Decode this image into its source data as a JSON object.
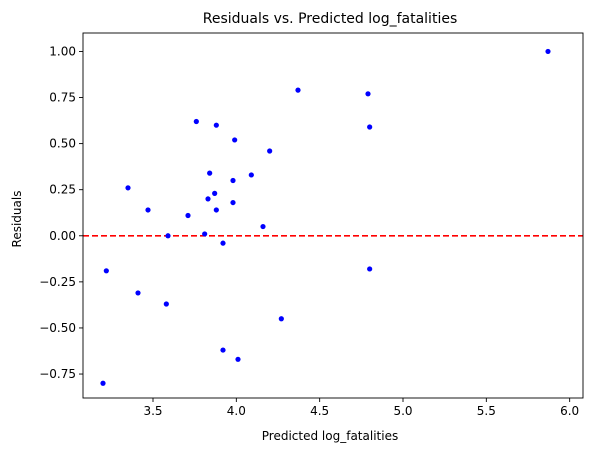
{
  "chart_data": {
    "type": "scatter",
    "title": "Residuals vs. Predicted log_fatalities",
    "xlabel": "Predicted log_fatalities",
    "ylabel": "Residuals",
    "xlim": [
      3.08,
      6.08
    ],
    "ylim": [
      -0.88,
      1.1
    ],
    "xticks": [
      3.5,
      4.0,
      4.5,
      5.0,
      5.5,
      6.0
    ],
    "xtick_labels": [
      "3.5",
      "4.0",
      "4.5",
      "5.0",
      "5.5",
      "6.0"
    ],
    "yticks": [
      -0.75,
      -0.5,
      -0.25,
      0.0,
      0.25,
      0.5,
      0.75,
      1.0
    ],
    "ytick_labels": [
      "−0.75",
      "−0.50",
      "−0.25",
      "0.00",
      "0.25",
      "0.50",
      "0.75",
      "1.00"
    ],
    "grid": false,
    "marker_color": "#0000ff",
    "reference_line": {
      "y": 0.0,
      "color": "#ff0000",
      "style": "dashed"
    },
    "points": [
      {
        "x": 3.2,
        "y": -0.8
      },
      {
        "x": 3.22,
        "y": -0.19
      },
      {
        "x": 3.35,
        "y": 0.26
      },
      {
        "x": 3.41,
        "y": -0.31
      },
      {
        "x": 3.47,
        "y": 0.14
      },
      {
        "x": 3.58,
        "y": -0.37
      },
      {
        "x": 3.59,
        "y": 0.0
      },
      {
        "x": 3.71,
        "y": 0.11
      },
      {
        "x": 3.76,
        "y": 0.62
      },
      {
        "x": 3.81,
        "y": 0.01
      },
      {
        "x": 3.83,
        "y": 0.2
      },
      {
        "x": 3.84,
        "y": 0.34
      },
      {
        "x": 3.87,
        "y": 0.23
      },
      {
        "x": 3.88,
        "y": 0.14
      },
      {
        "x": 3.88,
        "y": 0.6
      },
      {
        "x": 3.92,
        "y": -0.04
      },
      {
        "x": 3.92,
        "y": -0.62
      },
      {
        "x": 3.98,
        "y": 0.3
      },
      {
        "x": 3.98,
        "y": 0.18
      },
      {
        "x": 3.99,
        "y": 0.52
      },
      {
        "x": 4.01,
        "y": -0.67
      },
      {
        "x": 4.09,
        "y": 0.33
      },
      {
        "x": 4.16,
        "y": 0.05
      },
      {
        "x": 4.2,
        "y": 0.46
      },
      {
        "x": 4.27,
        "y": -0.45
      },
      {
        "x": 4.37,
        "y": 0.79
      },
      {
        "x": 4.79,
        "y": 0.77
      },
      {
        "x": 4.8,
        "y": 0.59
      },
      {
        "x": 4.8,
        "y": -0.18
      },
      {
        "x": 5.87,
        "y": 1.0
      }
    ]
  }
}
